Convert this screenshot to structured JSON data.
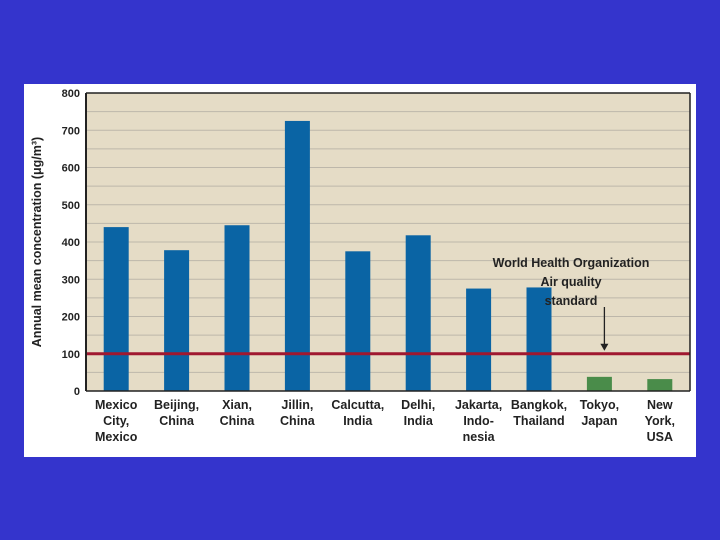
{
  "chart_data": {
    "type": "bar",
    "ylabel": "Annual mean concentration (μg/m³)",
    "ylim": [
      0,
      800
    ],
    "yticks": [
      0,
      100,
      200,
      300,
      400,
      500,
      600,
      700,
      800
    ],
    "grid": true,
    "categories": [
      [
        "Mexico",
        "City,",
        "Mexico"
      ],
      [
        "Beijing,",
        "China"
      ],
      [
        "Xian,",
        "China"
      ],
      [
        "Jillin,",
        "China"
      ],
      [
        "Calcutta,",
        "India"
      ],
      [
        "Delhi,",
        "India"
      ],
      [
        "Jakarta,",
        "Indo-",
        "nesia"
      ],
      [
        "Bangkok,",
        "Thailand"
      ],
      [
        "Tokyo,",
        "Japan"
      ],
      [
        "New",
        "York,",
        "USA"
      ]
    ],
    "values": [
      440,
      378,
      445,
      725,
      375,
      418,
      275,
      278,
      38,
      32
    ],
    "bar_colors": [
      "#0a64a4",
      "#0a64a4",
      "#0a64a4",
      "#0a64a4",
      "#0a64a4",
      "#0a64a4",
      "#0a64a4",
      "#0a64a4",
      "#4a8c4a",
      "#4a8c4a"
    ],
    "reference_line": {
      "value": 100,
      "color": "#a01830",
      "label": [
        "World Health Organization",
        "Air quality",
        "standard"
      ]
    },
    "colors": {
      "plot_background": "#e5dcc6",
      "grid": "#bdb7aa",
      "axis": "#222222"
    }
  }
}
